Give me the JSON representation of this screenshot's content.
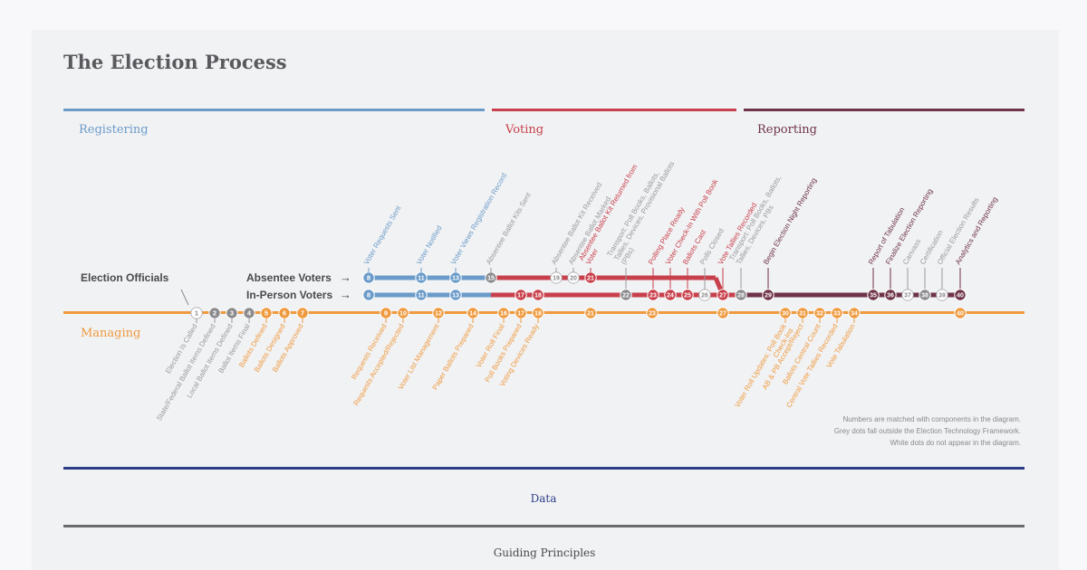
{
  "title": "The Election Process",
  "colors": {
    "registering": "#6b9bc9",
    "voting": "#c8404b",
    "reporting": "#6e3346",
    "managing": "#ef9a3f",
    "grey": "#8b8b8e",
    "data": "#2c3e87",
    "guiding": "#6b6b6e",
    "text_dark": "#4a4a4e"
  },
  "sections": {
    "registering": "Registering",
    "voting": "Voting",
    "reporting": "Reporting",
    "managing": "Managing",
    "data": "Data",
    "guiding": "Guiding Principles"
  },
  "lanes": {
    "officials": "Election Officials",
    "absentee": "Absentee Voters",
    "in_person": "In-Person Voters",
    "arrow": "→"
  },
  "note": [
    "Numbers are matched with components in the diagram.",
    "Grey dots fall outside the Election Technology Framework.",
    "White dots do not appear in the diagram."
  ],
  "absentee_nodes": [
    {
      "n": "8",
      "t": "blue",
      "label": "Voter Requests Sent",
      "lc": "blue"
    },
    {
      "n": "11",
      "t": "blue",
      "label": "Voter Notified",
      "lc": "blue"
    },
    {
      "n": "13",
      "t": "blue",
      "label": "Voter Views Registration Record",
      "lc": "blue"
    },
    {
      "n": "15",
      "t": "grey",
      "label": "Absentee Ballot Kits Sent",
      "lc": "grey"
    },
    {
      "n": "19",
      "t": "white",
      "label": "Absentee Ballot Kit Received",
      "lc": "grey"
    },
    {
      "n": "20",
      "t": "white",
      "label": "Absentee Ballot Marked",
      "lc": "grey"
    },
    {
      "n": "21",
      "t": "red",
      "label": "Absentee Ballot Kit Returned from Voter",
      "lc": "red"
    }
  ],
  "inperson_nodes": [
    {
      "n": "8",
      "t": "blue"
    },
    {
      "n": "11",
      "t": "blue"
    },
    {
      "n": "13",
      "t": "blue"
    },
    {
      "n": "17",
      "t": "red"
    },
    {
      "n": "18",
      "t": "red"
    },
    {
      "n": "22",
      "t": "grey",
      "label": "Transport: Poll Books, Ballots, Tallies, Devices, Provisional Ballots (PBs)",
      "lc": "grey"
    },
    {
      "n": "23",
      "t": "red",
      "label": "Polling Place Ready",
      "lc": "red"
    },
    {
      "n": "24",
      "t": "red",
      "label": "Voter Check-In With Poll Book",
      "lc": "red"
    },
    {
      "n": "25",
      "t": "red",
      "label": "Ballots Cast",
      "lc": "red"
    },
    {
      "n": "26",
      "t": "white",
      "label": "Polls Closed",
      "lc": "grey"
    },
    {
      "n": "27",
      "t": "red",
      "label": "Vote Tallies Recorded",
      "lc": "red"
    },
    {
      "n": "28",
      "t": "grey",
      "label": "Transport: Poll Books, Ballots, Tallies, Devices, PBs",
      "lc": "grey"
    },
    {
      "n": "29",
      "t": "maroon",
      "label": "Begin Election Night Reporting",
      "lc": "maroon"
    },
    {
      "n": "35",
      "t": "maroon",
      "label": "Report of Tabulation",
      "lc": "maroon"
    },
    {
      "n": "36",
      "t": "maroon",
      "label": "Finalize Election Reporting",
      "lc": "maroon"
    },
    {
      "n": "37",
      "t": "white",
      "label": "Canvass",
      "lc": "grey"
    },
    {
      "n": "38",
      "t": "grey",
      "label": "Certification",
      "lc": "grey"
    },
    {
      "n": "39",
      "t": "white",
      "label": "Official Election Results",
      "lc": "grey"
    },
    {
      "n": "40",
      "t": "maroon",
      "label": "Analytics and Reporting",
      "lc": "maroon"
    }
  ],
  "managing_nodes": [
    {
      "n": "1",
      "t": "white",
      "label": "Election Is Called",
      "lc": "grey"
    },
    {
      "n": "2",
      "t": "grey",
      "label": "State/Federal Ballot Items Defined",
      "lc": "grey"
    },
    {
      "n": "3",
      "t": "grey",
      "label": "Local Ballot Items Defined",
      "lc": "grey"
    },
    {
      "n": "4",
      "t": "grey",
      "label": "Ballot Items Final",
      "lc": "grey"
    },
    {
      "n": "5",
      "t": "orange",
      "label": "Ballots Defined",
      "lc": "orange"
    },
    {
      "n": "6",
      "t": "orange",
      "label": "Ballots Designed",
      "lc": "orange"
    },
    {
      "n": "7",
      "t": "orange",
      "label": "Ballots Approved",
      "lc": "orange"
    },
    {
      "n": "9",
      "t": "orange",
      "label": "Requests Received",
      "lc": "orange"
    },
    {
      "n": "10",
      "t": "orange",
      "label": "Requests Accepted/Rejected",
      "lc": "orange"
    },
    {
      "n": "12",
      "t": "orange",
      "label": "Voter List Management",
      "lc": "orange"
    },
    {
      "n": "14",
      "t": "orange",
      "label": "Paper Ballots Prepared",
      "lc": "orange"
    },
    {
      "n": "16",
      "t": "orange",
      "label": "Voter Roll Final",
      "lc": "orange"
    },
    {
      "n": "17",
      "t": "orange",
      "label": "Poll Books Prepared",
      "lc": "orange"
    },
    {
      "n": "18",
      "t": "orange",
      "label": "Voting Devices Ready",
      "lc": "orange"
    },
    {
      "n": "21",
      "t": "orange"
    },
    {
      "n": "23",
      "t": "orange"
    },
    {
      "n": "27",
      "t": "orange"
    },
    {
      "n": "30",
      "t": "orange",
      "label": "Voter Roll Updates; Poll Book Check-Ins",
      "lc": "orange"
    },
    {
      "n": "31",
      "t": "orange",
      "label": "AB & PB Accept/Reject",
      "lc": "orange"
    },
    {
      "n": "32",
      "t": "orange",
      "label": "Ballots Central Count",
      "lc": "orange"
    },
    {
      "n": "33",
      "t": "orange",
      "label": "Central Vote Tallies Recorded",
      "lc": "orange"
    },
    {
      "n": "34",
      "t": "orange",
      "label": "Vote Tabulation",
      "lc": "orange"
    },
    {
      "n": "40",
      "t": "orange"
    }
  ]
}
